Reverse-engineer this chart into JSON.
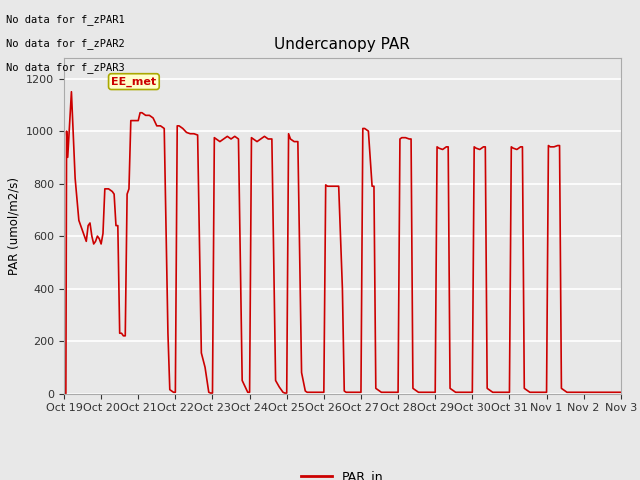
{
  "title": "Undercanopy PAR",
  "ylabel": "PAR (umol/m2/s)",
  "xlabel": "",
  "legend_label": "PAR_in",
  "legend_color": "#cc0000",
  "no_data_texts": [
    "No data for f_zPAR1",
    "No data for f_zPAR2",
    "No data for f_zPAR3"
  ],
  "annotation_text": "EE_met",
  "annotation_bg": "#ffffcc",
  "annotation_border": "#aaa800",
  "x_tick_labels": [
    "Oct 19",
    "Oct 20",
    "Oct 21",
    "Oct 22",
    "Oct 23",
    "Oct 24",
    "Oct 25",
    "Oct 26",
    "Oct 27",
    "Oct 28",
    "Oct 29",
    "Oct 30",
    "Oct 31",
    "Nov 1",
    "Nov 2",
    "Nov 3"
  ],
  "ylim": [
    0,
    1280
  ],
  "yticks": [
    0,
    200,
    400,
    600,
    800,
    1000,
    1200
  ],
  "bg_color": "#e8e8e8",
  "plot_bg_color": "#e8e8e8",
  "grid_color": "white",
  "line_color": "#cc0000",
  "line_width": 1.2,
  "figsize": [
    6.4,
    4.8
  ],
  "dpi": 100,
  "x_plot": [
    0.05,
    0.07,
    0.1,
    0.2,
    0.3,
    0.4,
    0.5,
    0.55,
    0.6,
    0.65,
    0.7,
    0.75,
    0.8,
    0.85,
    0.9,
    0.95,
    1.0,
    1.0,
    1.05,
    1.1,
    1.2,
    1.3,
    1.35,
    1.4,
    1.45,
    1.5,
    1.55,
    1.6,
    1.65,
    1.65,
    1.7,
    1.75,
    1.8,
    1.85,
    1.9,
    1.95,
    2.0,
    2.0,
    2.05,
    2.1,
    2.2,
    2.3,
    2.4,
    2.5,
    2.6,
    2.7,
    2.8,
    2.85,
    2.9,
    2.95,
    3.0,
    3.0,
    3.05,
    3.1,
    3.2,
    3.3,
    3.4,
    3.5,
    3.6,
    3.7,
    3.8,
    3.9,
    3.95,
    4.0,
    4.0,
    4.05,
    4.1,
    4.2,
    4.3,
    4.4,
    4.5,
    4.6,
    4.7,
    4.8,
    4.9,
    4.95,
    5.0,
    5.0,
    5.05,
    5.1,
    5.2,
    5.3,
    5.4,
    5.5,
    5.6,
    5.7,
    5.8,
    5.9,
    5.95,
    6.0,
    6.0,
    6.05,
    6.1,
    6.2,
    6.3,
    6.4,
    6.5,
    6.55,
    6.6,
    6.65,
    6.7,
    6.75,
    7.0,
    7.0,
    7.05,
    7.1,
    7.2,
    7.3,
    7.4,
    7.5,
    7.55,
    7.6,
    7.65,
    7.7,
    7.75,
    8.0,
    8.0,
    8.05,
    8.1,
    8.2,
    8.3,
    8.35,
    8.4,
    8.45,
    8.5,
    8.55,
    8.6,
    8.65,
    9.0,
    9.0,
    9.05,
    9.1,
    9.2,
    9.3,
    9.35,
    9.4,
    9.45,
    9.5,
    9.55,
    9.6,
    9.65,
    10.0,
    10.0,
    10.05,
    10.1,
    10.2,
    10.3,
    10.35,
    10.4,
    10.45,
    10.5,
    10.55,
    10.6,
    10.65,
    11.0,
    11.0,
    11.05,
    11.1,
    11.2,
    11.3,
    11.35,
    11.4,
    11.45,
    11.5,
    11.55,
    11.6,
    11.65,
    12.0,
    12.0,
    12.05,
    12.1,
    12.2,
    12.3,
    12.35,
    12.4,
    12.45,
    12.5,
    12.55,
    12.6,
    12.65,
    13.0,
    13.0,
    13.05,
    13.1,
    13.2,
    13.3,
    13.35,
    13.4,
    13.45,
    13.5,
    13.55,
    13.6,
    13.65,
    14.0,
    14.0,
    15.0
  ],
  "y_plot": [
    0,
    1000,
    900,
    1150,
    820,
    660,
    620,
    600,
    580,
    640,
    650,
    600,
    570,
    580,
    600,
    590,
    570,
    570,
    610,
    780,
    780,
    770,
    760,
    640,
    640,
    230,
    230,
    220,
    220,
    220,
    760,
    780,
    1040,
    1040,
    1040,
    1040,
    1040,
    1040,
    1070,
    1070,
    1060,
    1060,
    1050,
    1020,
    1020,
    1010,
    230,
    15,
    10,
    5,
    5,
    5,
    1020,
    1020,
    1010,
    995,
    990,
    990,
    985,
    155,
    100,
    5,
    2,
    2,
    2,
    975,
    970,
    960,
    970,
    980,
    970,
    980,
    970,
    50,
    20,
    5,
    5,
    5,
    975,
    970,
    960,
    970,
    980,
    970,
    970,
    50,
    25,
    5,
    2,
    2,
    2,
    990,
    970,
    960,
    960,
    80,
    10,
    5,
    5,
    5,
    5,
    5,
    5,
    5,
    795,
    790,
    790,
    790,
    790,
    400,
    10,
    5,
    5,
    5,
    5,
    5,
    5,
    1010,
    1010,
    1000,
    790,
    790,
    20,
    15,
    10,
    5,
    5,
    5,
    5,
    5,
    970,
    975,
    975,
    970,
    970,
    20,
    15,
    10,
    5,
    5,
    5,
    5,
    5,
    940,
    935,
    930,
    940,
    940,
    20,
    15,
    10,
    5,
    5,
    5,
    5,
    5,
    940,
    935,
    930,
    940,
    940,
    20,
    15,
    10,
    5,
    5,
    5,
    5,
    5,
    940,
    935,
    930,
    940,
    940,
    20,
    15,
    10,
    5,
    5,
    5,
    5,
    5,
    945,
    940,
    940,
    945,
    945,
    20,
    15,
    10,
    5,
    5,
    5,
    5,
    5,
    5
  ]
}
